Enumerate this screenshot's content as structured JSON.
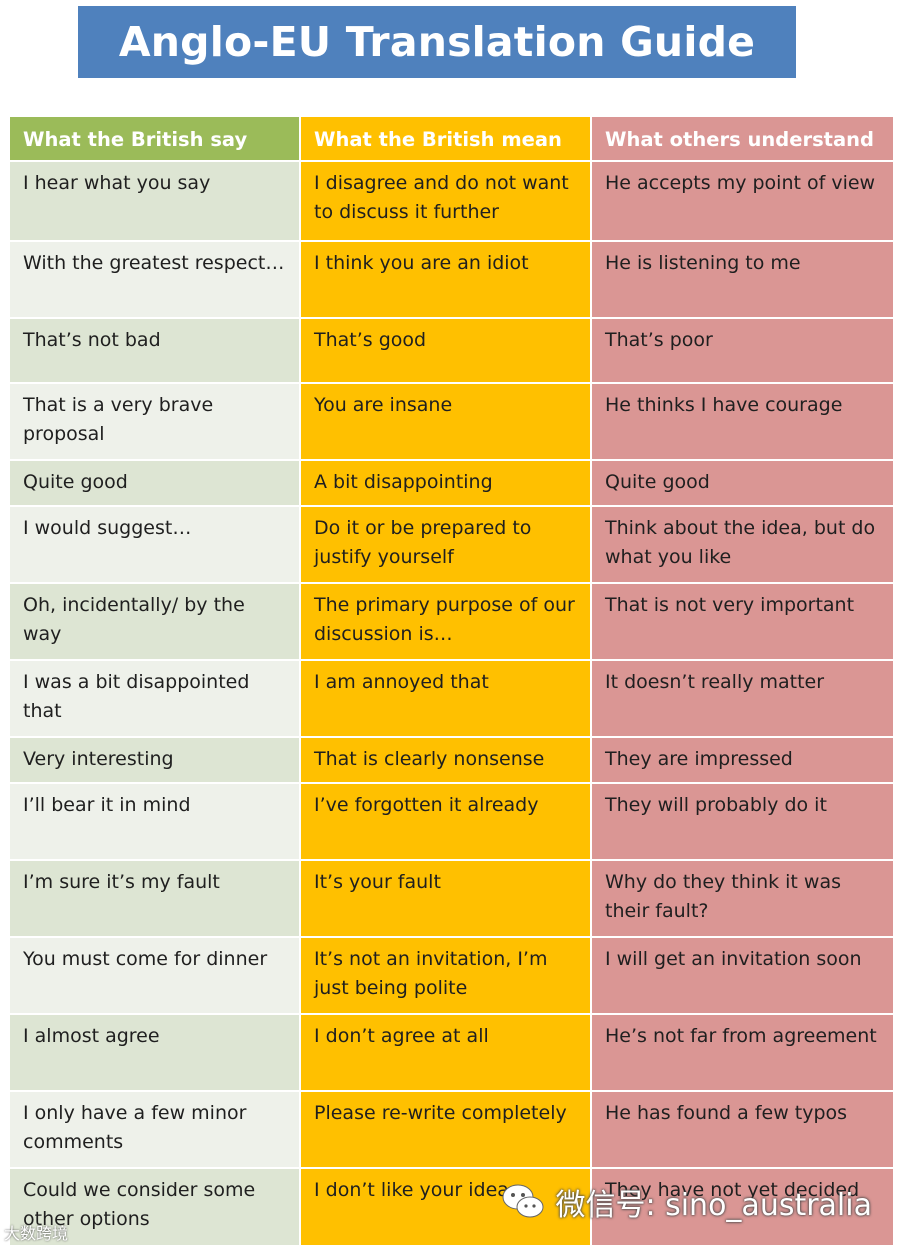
{
  "title": "Anglo-EU Translation Guide",
  "headers": [
    "What the British say",
    "What the British mean",
    "What others understand"
  ],
  "rows": [
    {
      "say": "I hear what you say",
      "mean": "I disagree and do not want to discuss it further",
      "understand": "He accepts my point of view"
    },
    {
      "say": "With the greatest respect…",
      "mean": "I think you are an idiot",
      "understand": "He is listening to me"
    },
    {
      "say": "That’s not bad",
      "mean": "That’s good",
      "understand": "That’s poor"
    },
    {
      "say": "That is a very brave proposal",
      "mean": "You are insane",
      "understand": "He thinks I have courage"
    },
    {
      "say": "Quite good",
      "mean": "A bit disappointing",
      "understand": "Quite good"
    },
    {
      "say": "I would suggest…",
      "mean": "Do it or be prepared to justify yourself",
      "understand": "Think about the idea, but do what you like"
    },
    {
      "say": "Oh, incidentally/ by the way",
      "mean": "The primary purpose of our discussion is…",
      "understand": "That is not very important"
    },
    {
      "say": "I was a bit disappointed that",
      "mean": "I am annoyed that",
      "understand": "It doesn’t really matter"
    },
    {
      "say": "Very interesting",
      "mean": "That is clearly nonsense",
      "understand": "They are impressed"
    },
    {
      "say": "I’ll bear it in mind",
      "mean": "I’ve forgotten it already",
      "understand": "They will probably do it"
    },
    {
      "say": "I’m sure it’s my fault",
      "mean": "It’s your fault",
      "understand": "Why do they think it was their fault?"
    },
    {
      "say": "You must come for dinner",
      "mean": "It’s not an invitation, I’m just being polite",
      "understand": "I will get an invitation soon"
    },
    {
      "say": "I almost agree",
      "mean": "I don’t agree at all",
      "understand": "He’s not far from agreement"
    },
    {
      "say": "I only have a few minor comments",
      "mean": "Please re-write completely",
      "understand": "He has found a few typos"
    },
    {
      "say": "Could we consider some other options",
      "mean": "I don’t like your idea",
      "understand": "They have not yet decided"
    }
  ],
  "watermark": {
    "text": "微信号: sino_australia",
    "corner": "大数跨境",
    "icon": "wechat-icon"
  },
  "colors": {
    "title_bg": "#4f81bd",
    "col_say": "#9bbb59",
    "col_mean": "#ffc000",
    "col_understand": "#da9694"
  }
}
